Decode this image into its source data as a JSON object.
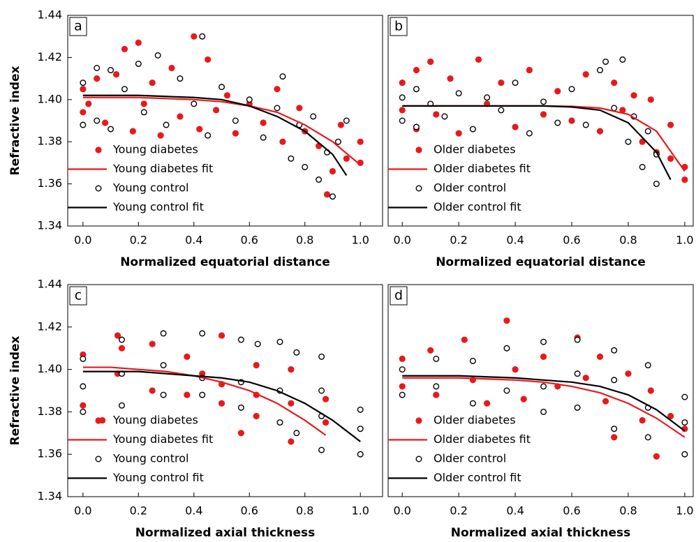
{
  "chart_data": [
    {
      "type": "scatter",
      "panel_label": "a",
      "xlabel": "Normalized equatorial distance",
      "ylabel": "Refractive index",
      "xlim": [
        -0.055,
        1.08
      ],
      "ylim": [
        1.34,
        1.44
      ],
      "xticks": [
        {
          "value": 0,
          "label": "0.0"
        },
        0.2,
        0.4,
        0.6,
        0.8,
        {
          "value": 1,
          "label": "1.0"
        }
      ],
      "yticks": [
        1.34,
        1.36,
        1.38,
        {
          "value": 1.4,
          "label": "1.40"
        },
        1.42,
        1.44
      ],
      "legend": "lower left",
      "series": [
        {
          "name": "Young diabetes",
          "color": "#e8191c",
          "marker": "filled",
          "x": [
            0,
            0,
            0.02,
            0.05,
            0.08,
            0.12,
            0.15,
            0.18,
            0.2,
            0.22,
            0.25,
            0.28,
            0.32,
            0.35,
            0.4,
            0.42,
            0.45,
            0.48,
            0.52,
            0.55,
            0.6,
            0.65,
            0.7,
            0.72,
            0.78,
            0.8,
            0.85,
            0.88,
            0.9,
            0.93,
            0.95,
            1,
            1
          ],
          "values": [
            1.405,
            1.394,
            1.398,
            1.41,
            1.389,
            1.412,
            1.424,
            1.385,
            1.427,
            1.398,
            1.408,
            1.383,
            1.415,
            1.392,
            1.43,
            1.386,
            1.419,
            1.395,
            1.402,
            1.384,
            1.398,
            1.389,
            1.405,
            1.38,
            1.396,
            1.385,
            1.378,
            1.355,
            1.366,
            1.388,
            1.372,
            1.38,
            1.37
          ]
        },
        {
          "name": "Young diabetes fit",
          "color": "#e8191c",
          "marker": "line",
          "x": [
            0,
            0.1,
            0.2,
            0.3,
            0.4,
            0.5,
            0.6,
            0.7,
            0.8,
            0.9,
            1
          ],
          "values": [
            1.401,
            1.401,
            1.401,
            1.4005,
            1.4,
            1.399,
            1.397,
            1.394,
            1.388,
            1.38,
            1.369
          ]
        },
        {
          "name": "Young control",
          "color": "#000000",
          "marker": "open",
          "x": [
            0,
            0,
            0.05,
            0.05,
            0.1,
            0.1,
            0.15,
            0.2,
            0.22,
            0.27,
            0.3,
            0.35,
            0.4,
            0.43,
            0.45,
            0.5,
            0.55,
            0.6,
            0.65,
            0.7,
            0.72,
            0.75,
            0.78,
            0.8,
            0.83,
            0.85,
            0.88,
            0.9,
            0.92,
            0.95
          ],
          "values": [
            1.388,
            1.408,
            1.415,
            1.39,
            1.414,
            1.386,
            1.405,
            1.417,
            1.394,
            1.421,
            1.388,
            1.41,
            1.398,
            1.43,
            1.383,
            1.406,
            1.39,
            1.4,
            1.382,
            1.396,
            1.411,
            1.372,
            1.388,
            1.368,
            1.392,
            1.362,
            1.375,
            1.354,
            1.38,
            1.39
          ]
        },
        {
          "name": "Young control fit",
          "color": "#000000",
          "marker": "line",
          "x": [
            0,
            0.1,
            0.2,
            0.3,
            0.4,
            0.5,
            0.6,
            0.7,
            0.8,
            0.9,
            0.95
          ],
          "values": [
            1.402,
            1.402,
            1.402,
            1.4015,
            1.401,
            1.4,
            1.397,
            1.392,
            1.385,
            1.374,
            1.364
          ]
        }
      ]
    },
    {
      "type": "scatter",
      "panel_label": "b",
      "xlabel": "Normalized equatorial distance",
      "xlim": [
        -0.05,
        1.03
      ],
      "ylim": [
        1.34,
        1.44
      ],
      "xticks": [
        {
          "value": 0,
          "label": "0.0"
        },
        0.2,
        0.4,
        0.6,
        0.8,
        {
          "value": 1,
          "label": "1.0"
        }
      ],
      "legend": "lower left",
      "series": [
        {
          "name": "Older diabetes",
          "color": "#e8191c",
          "marker": "filled",
          "x": [
            0,
            0,
            0.05,
            0.05,
            0.1,
            0.12,
            0.17,
            0.2,
            0.27,
            0.3,
            0.35,
            0.4,
            0.45,
            0.5,
            0.55,
            0.6,
            0.65,
            0.7,
            0.75,
            0.78,
            0.82,
            0.85,
            0.88,
            0.9,
            0.95,
            0.95,
            1,
            1
          ],
          "values": [
            1.408,
            1.395,
            1.414,
            1.386,
            1.418,
            1.393,
            1.41,
            1.384,
            1.419,
            1.398,
            1.408,
            1.387,
            1.414,
            1.393,
            1.404,
            1.39,
            1.412,
            1.385,
            1.408,
            1.395,
            1.402,
            1.38,
            1.4,
            1.375,
            1.388,
            1.372,
            1.368,
            1.362
          ]
        },
        {
          "name": "Older diabetes fit",
          "color": "#e8191c",
          "marker": "line",
          "x": [
            0,
            0.1,
            0.2,
            0.3,
            0.4,
            0.5,
            0.6,
            0.7,
            0.8,
            0.9,
            1
          ],
          "values": [
            1.397,
            1.397,
            1.397,
            1.397,
            1.397,
            1.397,
            1.3968,
            1.396,
            1.393,
            1.385,
            1.366
          ]
        },
        {
          "name": "Older control",
          "color": "#000000",
          "marker": "open",
          "x": [
            0,
            0,
            0.05,
            0.05,
            0.1,
            0.15,
            0.2,
            0.25,
            0.3,
            0.35,
            0.4,
            0.45,
            0.5,
            0.55,
            0.6,
            0.65,
            0.7,
            0.72,
            0.75,
            0.78,
            0.8,
            0.82,
            0.85,
            0.87,
            0.9,
            0.9
          ],
          "values": [
            1.401,
            1.39,
            1.405,
            1.387,
            1.398,
            1.392,
            1.403,
            1.386,
            1.401,
            1.395,
            1.408,
            1.384,
            1.399,
            1.389,
            1.405,
            1.388,
            1.414,
            1.418,
            1.396,
            1.419,
            1.38,
            1.392,
            1.368,
            1.385,
            1.36,
            1.374
          ]
        },
        {
          "name": "Older control fit",
          "color": "#000000",
          "marker": "line",
          "x": [
            0,
            0.1,
            0.2,
            0.3,
            0.4,
            0.5,
            0.6,
            0.7,
            0.8,
            0.9,
            0.95
          ],
          "values": [
            1.397,
            1.397,
            1.397,
            1.397,
            1.397,
            1.397,
            1.3965,
            1.395,
            1.389,
            1.375,
            1.362
          ]
        }
      ]
    },
    {
      "type": "scatter",
      "panel_label": "c",
      "xlabel": "Normalized axial thickness",
      "ylabel": "Refractive index",
      "xlim": [
        -0.055,
        1.08
      ],
      "ylim": [
        1.34,
        1.44
      ],
      "xticks": [
        {
          "value": 0,
          "label": "0.0"
        },
        0.2,
        0.4,
        0.6,
        0.8,
        {
          "value": 1,
          "label": "1.0"
        }
      ],
      "yticks": [
        1.34,
        1.36,
        1.38,
        {
          "value": 1.4,
          "label": "1.40"
        },
        1.42,
        1.44
      ],
      "legend": "lower left",
      "series": [
        {
          "name": "Young diabetes",
          "color": "#e8191c",
          "marker": "filled",
          "x": [
            0,
            0,
            0.07,
            0.125,
            0.125,
            0.14,
            0.25,
            0.25,
            0.375,
            0.375,
            0.43,
            0.5,
            0.5,
            0.5,
            0.57,
            0.625,
            0.625,
            0.625,
            0.75,
            0.75,
            0.75,
            0.875,
            0.875
          ],
          "values": [
            1.407,
            1.383,
            1.376,
            1.416,
            1.398,
            1.41,
            1.412,
            1.39,
            1.406,
            1.388,
            1.398,
            1.416,
            1.393,
            1.384,
            1.37,
            1.402,
            1.388,
            1.378,
            1.4,
            1.384,
            1.366,
            1.386,
            1.375
          ]
        },
        {
          "name": "Young diabetes fit",
          "color": "#e8191c",
          "marker": "line",
          "x": [
            0,
            0.1,
            0.2,
            0.3,
            0.4,
            0.5,
            0.6,
            0.7,
            0.8,
            0.875
          ],
          "values": [
            1.401,
            1.401,
            1.4,
            1.399,
            1.397,
            1.394,
            1.39,
            1.384,
            1.376,
            1.369
          ]
        },
        {
          "name": "Young control",
          "color": "#000000",
          "marker": "open",
          "x": [
            0,
            0,
            0,
            0.14,
            0.14,
            0.14,
            0.29,
            0.29,
            0.29,
            0.43,
            0.43,
            0.43,
            0.57,
            0.57,
            0.57,
            0.63,
            0.71,
            0.71,
            0.71,
            0.77,
            0.77,
            0.86,
            0.86,
            0.86,
            0.86,
            1,
            1,
            1
          ],
          "values": [
            1.405,
            1.392,
            1.38,
            1.414,
            1.398,
            1.383,
            1.417,
            1.402,
            1.388,
            1.417,
            1.396,
            1.388,
            1.414,
            1.394,
            1.382,
            1.412,
            1.413,
            1.39,
            1.375,
            1.408,
            1.37,
            1.406,
            1.39,
            1.378,
            1.362,
            1.381,
            1.372,
            1.36
          ]
        },
        {
          "name": "Young control fit",
          "color": "#000000",
          "marker": "line",
          "x": [
            0,
            0.1,
            0.2,
            0.3,
            0.4,
            0.5,
            0.6,
            0.7,
            0.8,
            0.9,
            1
          ],
          "values": [
            1.399,
            1.399,
            1.399,
            1.398,
            1.397,
            1.396,
            1.394,
            1.39,
            1.384,
            1.376,
            1.366
          ]
        }
      ]
    },
    {
      "type": "scatter",
      "panel_label": "d",
      "xlabel": "Normalized axial thickness",
      "xlim": [
        -0.05,
        1.03
      ],
      "ylim": [
        1.34,
        1.44
      ],
      "xticks": [
        {
          "value": 0,
          "label": "0.0"
        },
        0.2,
        0.4,
        0.6,
        0.8,
        {
          "value": 1,
          "label": "1.0"
        }
      ],
      "legend": "lower left",
      "series": [
        {
          "name": "Older diabetes",
          "color": "#e8191c",
          "marker": "filled",
          "x": [
            0,
            0,
            0.1,
            0.12,
            0.22,
            0.25,
            0.3,
            0.37,
            0.4,
            0.43,
            0.5,
            0.55,
            0.62,
            0.65,
            0.7,
            0.72,
            0.75,
            0.8,
            0.85,
            0.88,
            0.9,
            0.95,
            1
          ],
          "values": [
            1.405,
            1.392,
            1.409,
            1.388,
            1.414,
            1.395,
            1.384,
            1.423,
            1.4,
            1.386,
            1.406,
            1.392,
            1.415,
            1.396,
            1.406,
            1.385,
            1.368,
            1.398,
            1.376,
            1.39,
            1.359,
            1.378,
            1.372
          ]
        },
        {
          "name": "Older diabetes fit",
          "color": "#e8191c",
          "marker": "line",
          "x": [
            0,
            0.1,
            0.2,
            0.3,
            0.4,
            0.5,
            0.6,
            0.7,
            0.8,
            0.9,
            1
          ],
          "values": [
            1.396,
            1.396,
            1.396,
            1.3955,
            1.395,
            1.394,
            1.392,
            1.389,
            1.384,
            1.377,
            1.368
          ]
        },
        {
          "name": "Older control",
          "color": "#000000",
          "marker": "open",
          "x": [
            0,
            0,
            0.12,
            0.12,
            0.25,
            0.25,
            0.37,
            0.37,
            0.5,
            0.5,
            0.5,
            0.62,
            0.62,
            0.62,
            0.75,
            0.75,
            0.75,
            0.87,
            0.87,
            0.87,
            1,
            1,
            1
          ],
          "values": [
            1.4,
            1.388,
            1.405,
            1.392,
            1.404,
            1.384,
            1.41,
            1.39,
            1.413,
            1.392,
            1.38,
            1.414,
            1.398,
            1.382,
            1.409,
            1.395,
            1.372,
            1.402,
            1.382,
            1.368,
            1.387,
            1.375,
            1.36
          ]
        },
        {
          "name": "Older control fit",
          "color": "#000000",
          "marker": "line",
          "x": [
            0,
            0.1,
            0.2,
            0.3,
            0.4,
            0.5,
            0.6,
            0.7,
            0.8,
            0.9,
            1
          ],
          "values": [
            1.397,
            1.397,
            1.397,
            1.3965,
            1.396,
            1.395,
            1.394,
            1.392,
            1.388,
            1.381,
            1.371
          ]
        }
      ]
    }
  ]
}
